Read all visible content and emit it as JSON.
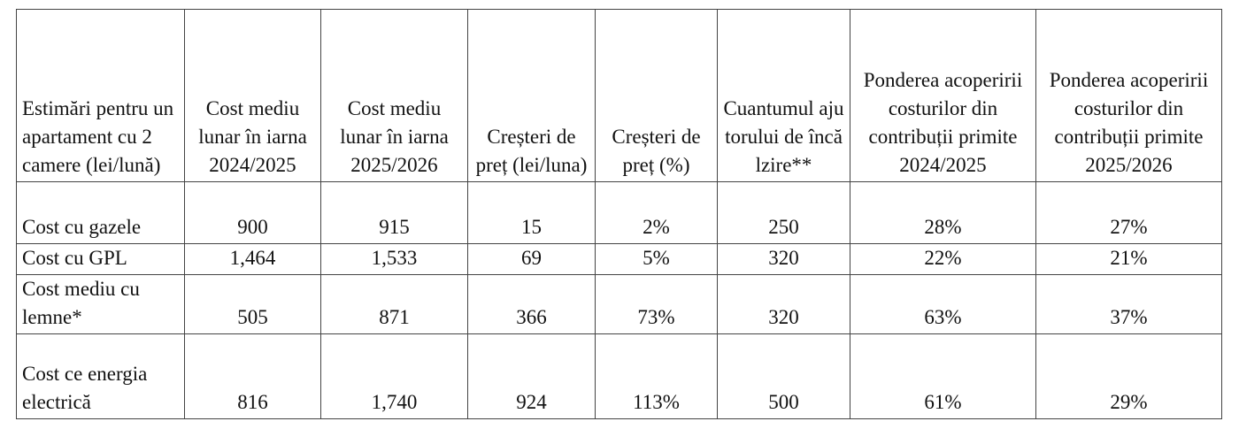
{
  "table": {
    "header": [
      "Estimări pentru un apartament cu 2 camere (lei/lună)",
      "Cost mediu lunar în iarna 2024/2025",
      "Cost mediu lunar în iarna 2025/2026",
      "Creșteri de preț (lei/luna)",
      "Creșteri de preț (%)",
      "Cuantumul ajutorului de încălzire**",
      "Ponderea acoperirii costurilor din contribuții primite 2024/2025",
      "Ponderea acoperirii costurilor din contribuții primite 2025/2026"
    ],
    "rows": [
      [
        "Cost cu gazele",
        "900",
        "915",
        "15",
        "2%",
        "250",
        "28%",
        "27%"
      ],
      [
        "Cost cu GPL",
        "1,464",
        "1,533",
        "69",
        "5%",
        "320",
        "22%",
        "21%"
      ],
      [
        "Cost mediu cu lemne*",
        "505",
        "871",
        "366",
        "73%",
        "320",
        "63%",
        "37%"
      ],
      [
        "Cost ce energia electrică",
        "816",
        "1,740",
        "924",
        "113%",
        "500",
        "61%",
        "29%"
      ]
    ]
  }
}
